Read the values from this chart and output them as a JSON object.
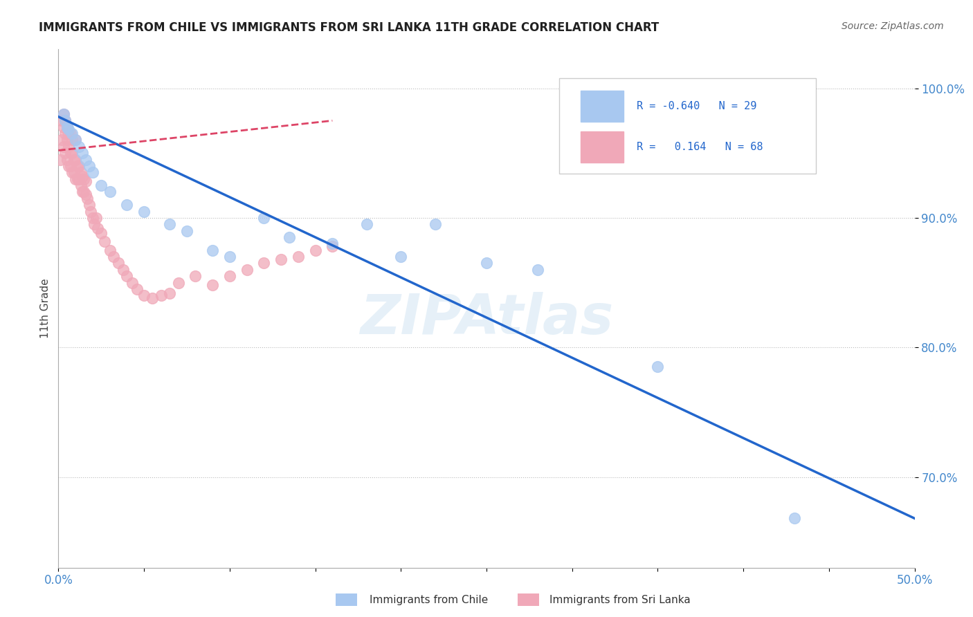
{
  "title": "IMMIGRANTS FROM CHILE VS IMMIGRANTS FROM SRI LANKA 11TH GRADE CORRELATION CHART",
  "source": "Source: ZipAtlas.com",
  "xlabel_chile": "Immigrants from Chile",
  "xlabel_srilanka": "Immigrants from Sri Lanka",
  "ylabel": "11th Grade",
  "xlim": [
    0.0,
    0.5
  ],
  "ylim": [
    0.63,
    1.03
  ],
  "xticks": [
    0.0,
    0.05,
    0.1,
    0.15,
    0.2,
    0.25,
    0.3,
    0.35,
    0.4,
    0.45,
    0.5
  ],
  "yticks": [
    0.7,
    0.8,
    0.9,
    1.0
  ],
  "xtick_labels_show": [
    "0.0%",
    "50.0%"
  ],
  "xtick_positions_show": [
    0.0,
    0.5
  ],
  "ytick_labels": [
    "70.0%",
    "80.0%",
    "90.0%",
    "100.0%"
  ],
  "R_chile": -0.64,
  "N_chile": 29,
  "R_srilanka": 0.164,
  "N_srilanka": 68,
  "chile_color": "#a8c8f0",
  "srilanka_color": "#f0a8b8",
  "chile_line_color": "#2266cc",
  "srilanka_line_color": "#dd4466",
  "grid_color": "#bbbbbb",
  "title_color": "#202020",
  "axis_label_color": "#4488cc",
  "watermark": "ZIPAtlas",
  "chile_scatter_x": [
    0.003,
    0.004,
    0.005,
    0.006,
    0.008,
    0.01,
    0.012,
    0.014,
    0.016,
    0.018,
    0.02,
    0.025,
    0.03,
    0.04,
    0.05,
    0.065,
    0.075,
    0.09,
    0.1,
    0.12,
    0.135,
    0.16,
    0.18,
    0.2,
    0.22,
    0.25,
    0.28,
    0.35,
    0.43
  ],
  "chile_scatter_y": [
    0.98,
    0.975,
    0.97,
    0.968,
    0.965,
    0.96,
    0.955,
    0.95,
    0.945,
    0.94,
    0.935,
    0.925,
    0.92,
    0.91,
    0.905,
    0.895,
    0.89,
    0.875,
    0.87,
    0.9,
    0.885,
    0.88,
    0.895,
    0.87,
    0.895,
    0.865,
    0.86,
    0.785,
    0.668
  ],
  "srilanka_scatter_x": [
    0.001,
    0.002,
    0.002,
    0.003,
    0.003,
    0.003,
    0.004,
    0.004,
    0.004,
    0.005,
    0.005,
    0.005,
    0.006,
    0.006,
    0.006,
    0.007,
    0.007,
    0.007,
    0.008,
    0.008,
    0.008,
    0.009,
    0.009,
    0.01,
    0.01,
    0.01,
    0.011,
    0.011,
    0.012,
    0.012,
    0.013,
    0.013,
    0.014,
    0.014,
    0.015,
    0.015,
    0.016,
    0.016,
    0.017,
    0.018,
    0.019,
    0.02,
    0.021,
    0.022,
    0.023,
    0.025,
    0.027,
    0.03,
    0.032,
    0.035,
    0.038,
    0.04,
    0.043,
    0.046,
    0.05,
    0.055,
    0.06,
    0.065,
    0.07,
    0.08,
    0.09,
    0.1,
    0.11,
    0.12,
    0.13,
    0.14,
    0.15,
    0.16
  ],
  "srilanka_scatter_y": [
    0.945,
    0.96,
    0.975,
    0.955,
    0.97,
    0.98,
    0.95,
    0.965,
    0.975,
    0.945,
    0.96,
    0.97,
    0.94,
    0.955,
    0.965,
    0.94,
    0.95,
    0.965,
    0.935,
    0.95,
    0.96,
    0.935,
    0.945,
    0.93,
    0.945,
    0.96,
    0.93,
    0.94,
    0.93,
    0.94,
    0.925,
    0.935,
    0.92,
    0.932,
    0.92,
    0.93,
    0.918,
    0.928,
    0.915,
    0.91,
    0.905,
    0.9,
    0.895,
    0.9,
    0.892,
    0.888,
    0.882,
    0.875,
    0.87,
    0.865,
    0.86,
    0.855,
    0.85,
    0.845,
    0.84,
    0.838,
    0.84,
    0.842,
    0.85,
    0.855,
    0.848,
    0.855,
    0.86,
    0.865,
    0.868,
    0.87,
    0.875,
    0.878
  ],
  "chile_trendline_x": [
    0.0,
    0.5
  ],
  "chile_trendline_y": [
    0.978,
    0.668
  ],
  "srilanka_trendline_x": [
    0.0,
    0.16
  ],
  "srilanka_trendline_y": [
    0.952,
    0.975
  ]
}
